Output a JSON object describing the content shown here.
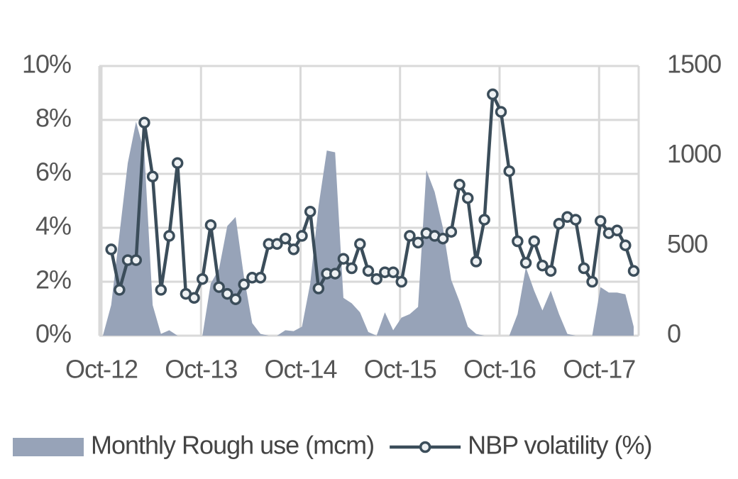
{
  "chart_data": {
    "type": "line",
    "categories": [
      "Oct-12",
      null,
      null,
      null,
      null,
      null,
      null,
      null,
      null,
      null,
      null,
      null,
      "Oct-13",
      null,
      null,
      null,
      null,
      null,
      null,
      null,
      null,
      null,
      null,
      null,
      "Oct-14",
      null,
      null,
      null,
      null,
      null,
      null,
      null,
      null,
      null,
      null,
      null,
      "Oct-15",
      null,
      null,
      null,
      null,
      null,
      null,
      null,
      null,
      null,
      null,
      null,
      "Oct-16",
      null,
      null,
      null,
      null,
      null,
      null,
      null,
      null,
      null,
      null,
      null,
      "Oct-17",
      null,
      null,
      null,
      null
    ],
    "series": [
      {
        "name": "Monthly Rough use (mcm)",
        "type": "area",
        "axis": "y2",
        "color": "#97a3b8",
        "values": [
          0,
          170,
          565,
          960,
          1190,
          1020,
          170,
          10,
          30,
          0,
          0,
          0,
          0,
          290,
          370,
          610,
          660,
          330,
          70,
          10,
          0,
          0,
          30,
          25,
          50,
          290,
          720,
          1030,
          1020,
          210,
          180,
          130,
          20,
          0,
          130,
          30,
          100,
          120,
          160,
          920,
          800,
          600,
          310,
          190,
          50,
          10,
          0,
          0,
          0,
          0,
          120,
          380,
          250,
          140,
          250,
          120,
          10,
          0,
          0,
          0,
          270,
          240,
          240,
          230,
          50
        ]
      },
      {
        "name": "NBP volatility (%)",
        "type": "line",
        "color": "#3b4d5a",
        "values": [
          null,
          3.2,
          1.7,
          2.8,
          2.8,
          7.9,
          5.9,
          1.7,
          3.7,
          6.4,
          1.55,
          1.4,
          2.1,
          4.1,
          1.8,
          1.55,
          1.35,
          1.9,
          2.15,
          2.15,
          3.4,
          3.4,
          3.6,
          3.2,
          3.7,
          4.6,
          1.75,
          2.3,
          2.3,
          2.85,
          2.5,
          3.4,
          2.4,
          2.1,
          2.35,
          2.35,
          2.0,
          3.7,
          3.45,
          3.8,
          3.7,
          3.6,
          3.85,
          5.6,
          5.1,
          2.75,
          4.3,
          8.95,
          8.3,
          6.1,
          3.5,
          2.7,
          3.5,
          2.6,
          2.4,
          4.15,
          4.4,
          4.3,
          2.5,
          2.0,
          4.25,
          3.8,
          3.9,
          3.35,
          2.4
        ]
      }
    ],
    "ylim": [
      0,
      10
    ],
    "yticks": [
      {
        "value": 0,
        "label": "0%"
      },
      {
        "value": 2,
        "label": "2%"
      },
      {
        "value": 4,
        "label": "4%"
      },
      {
        "value": 6,
        "label": "6%"
      },
      {
        "value": 8,
        "label": "8%"
      },
      {
        "value": 10,
        "label": "10%"
      }
    ],
    "y2lim": [
      0,
      1500
    ],
    "y2ticks": [
      0,
      500,
      1000,
      1500
    ],
    "grid": true,
    "legend": "bottom"
  }
}
